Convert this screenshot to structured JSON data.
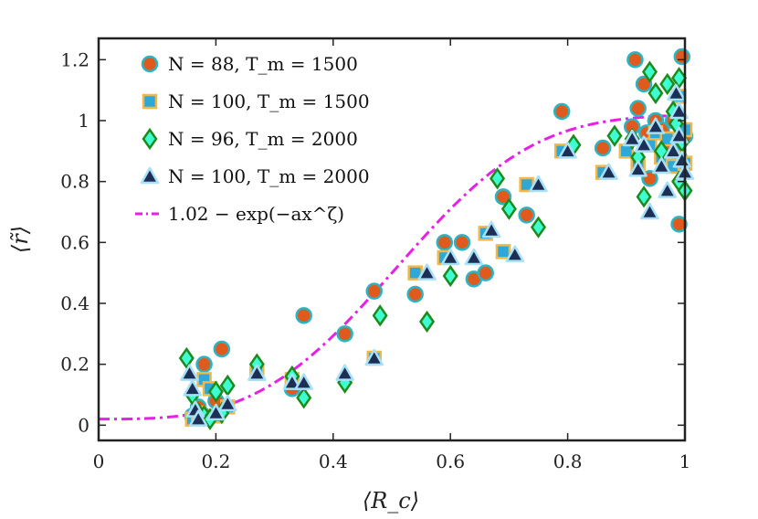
{
  "chart_data": {
    "type": "scatter",
    "xlabel": "⟨R_c⟩",
    "ylabel": "⟨r̃⟩",
    "xlim": [
      0,
      1
    ],
    "ylim": [
      -0.05,
      1.27
    ],
    "xticks": [
      0,
      0.2,
      0.4,
      0.6,
      0.8,
      1
    ],
    "xtick_labels": [
      "0",
      "0.2",
      "0.4",
      "0.6",
      "0.8",
      "1"
    ],
    "yticks": [
      0,
      0.2,
      0.4,
      0.6,
      0.8,
      1,
      1.2
    ],
    "ytick_labels": [
      "0",
      "0.2",
      "0.4",
      "0.6",
      "0.8",
      "1",
      "1.2"
    ],
    "legend_position": "top-left",
    "series": [
      {
        "name": "N = 88, T_m = 1500",
        "legend": "N = 88, T_m = 1500",
        "marker": "circle",
        "fill": "#e05a1e",
        "stroke": "#2ab5c4",
        "points": [
          [
            0.16,
            0.03
          ],
          [
            0.17,
            0.06
          ],
          [
            0.18,
            0.2
          ],
          [
            0.21,
            0.25
          ],
          [
            0.18,
            0.03
          ],
          [
            0.2,
            0.08
          ],
          [
            0.33,
            0.12
          ],
          [
            0.35,
            0.36
          ],
          [
            0.42,
            0.3
          ],
          [
            0.47,
            0.44
          ],
          [
            0.54,
            0.43
          ],
          [
            0.59,
            0.6
          ],
          [
            0.62,
            0.6
          ],
          [
            0.64,
            0.48
          ],
          [
            0.66,
            0.5
          ],
          [
            0.69,
            0.75
          ],
          [
            0.73,
            0.69
          ],
          [
            0.79,
            1.03
          ],
          [
            0.86,
            0.91
          ],
          [
            0.91,
            0.98
          ],
          [
            0.915,
            1.2
          ],
          [
            0.92,
            1.04
          ],
          [
            0.93,
            1.12
          ],
          [
            0.935,
            0.96
          ],
          [
            0.94,
            0.81
          ],
          [
            0.95,
            1.0
          ],
          [
            0.96,
            0.97
          ],
          [
            0.97,
            0.9
          ],
          [
            0.98,
            1.0
          ],
          [
            0.99,
            0.66
          ],
          [
            0.995,
            1.21
          ],
          [
            0.99,
            0.88
          ],
          [
            1.0,
            0.95
          ],
          [
            0.985,
            0.93
          ]
        ]
      },
      {
        "name": "N = 100, T_m = 1500",
        "legend": "N = 100, T_m = 1500",
        "marker": "square",
        "fill": "#2ea8d8",
        "stroke": "#f0b84a",
        "points": [
          [
            0.16,
            0.02
          ],
          [
            0.17,
            0.04
          ],
          [
            0.18,
            0.15
          ],
          [
            0.19,
            0.12
          ],
          [
            0.2,
            0.03
          ],
          [
            0.22,
            0.06
          ],
          [
            0.27,
            0.17
          ],
          [
            0.33,
            0.15
          ],
          [
            0.47,
            0.22
          ],
          [
            0.54,
            0.5
          ],
          [
            0.59,
            0.55
          ],
          [
            0.66,
            0.63
          ],
          [
            0.69,
            0.57
          ],
          [
            0.73,
            0.79
          ],
          [
            0.79,
            0.9
          ],
          [
            0.86,
            0.83
          ],
          [
            0.9,
            0.9
          ],
          [
            0.92,
            0.85
          ],
          [
            0.94,
            0.92
          ],
          [
            0.95,
            0.96
          ],
          [
            0.96,
            0.88
          ],
          [
            0.97,
            0.94
          ],
          [
            0.98,
            0.85
          ],
          [
            0.99,
            0.92
          ],
          [
            1.0,
            0.97
          ],
          [
            0.99,
            1.08
          ],
          [
            1.0,
            0.86
          ]
        ]
      },
      {
        "name": "N = 96, T_m = 2000",
        "legend": "N = 96, T_m = 2000",
        "marker": "diamond",
        "fill": "#3dffd0",
        "stroke": "#1e8a1e",
        "points": [
          [
            0.15,
            0.22
          ],
          [
            0.16,
            0.1
          ],
          [
            0.17,
            0.04
          ],
          [
            0.18,
            0.03
          ],
          [
            0.19,
            0.02
          ],
          [
            0.2,
            0.11
          ],
          [
            0.21,
            0.04
          ],
          [
            0.22,
            0.13
          ],
          [
            0.27,
            0.2
          ],
          [
            0.33,
            0.16
          ],
          [
            0.35,
            0.09
          ],
          [
            0.42,
            0.14
          ],
          [
            0.48,
            0.36
          ],
          [
            0.56,
            0.34
          ],
          [
            0.6,
            0.49
          ],
          [
            0.68,
            0.81
          ],
          [
            0.7,
            0.71
          ],
          [
            0.75,
            0.65
          ],
          [
            0.81,
            0.92
          ],
          [
            0.88,
            0.95
          ],
          [
            0.91,
            0.94
          ],
          [
            0.92,
            0.88
          ],
          [
            0.93,
            0.75
          ],
          [
            0.94,
            1.16
          ],
          [
            0.95,
            1.09
          ],
          [
            0.96,
            0.9
          ],
          [
            0.97,
            1.12
          ],
          [
            0.98,
            1.03
          ],
          [
            0.99,
            1.14
          ],
          [
            0.99,
            0.8
          ],
          [
            1.0,
            0.77
          ],
          [
            0.995,
            0.93
          ],
          [
            0.985,
            0.99
          ]
        ]
      },
      {
        "name": "N = 100, T_m = 2000",
        "legend": "N = 100, T_m = 2000",
        "marker": "triangle",
        "fill": "#1e2f55",
        "stroke": "#a8e0f8",
        "points": [
          [
            0.155,
            0.17
          ],
          [
            0.16,
            0.12
          ],
          [
            0.165,
            0.05
          ],
          [
            0.17,
            0.02
          ],
          [
            0.2,
            0.04
          ],
          [
            0.22,
            0.07
          ],
          [
            0.27,
            0.17
          ],
          [
            0.33,
            0.14
          ],
          [
            0.35,
            0.14
          ],
          [
            0.42,
            0.17
          ],
          [
            0.47,
            0.22
          ],
          [
            0.56,
            0.5
          ],
          [
            0.6,
            0.55
          ],
          [
            0.64,
            0.55
          ],
          [
            0.67,
            0.64
          ],
          [
            0.71,
            0.56
          ],
          [
            0.75,
            0.79
          ],
          [
            0.8,
            0.9
          ],
          [
            0.87,
            0.83
          ],
          [
            0.91,
            0.94
          ],
          [
            0.92,
            0.84
          ],
          [
            0.93,
            0.92
          ],
          [
            0.94,
            0.7
          ],
          [
            0.95,
            0.98
          ],
          [
            0.96,
            0.85
          ],
          [
            0.97,
            0.77
          ],
          [
            0.98,
            0.9
          ],
          [
            0.99,
            1.03
          ],
          [
            1.0,
            0.83
          ],
          [
            0.99,
            0.95
          ],
          [
            0.985,
            1.09
          ],
          [
            0.995,
            0.87
          ]
        ]
      }
    ],
    "fit_curve": {
      "legend": "1.02 − exp(−ax^ζ)",
      "color": "#e620e6",
      "style": "dash-dot",
      "offset": 1.02,
      "a": 6.0,
      "zeta": 3.2,
      "x_range": [
        0,
        1
      ]
    }
  }
}
